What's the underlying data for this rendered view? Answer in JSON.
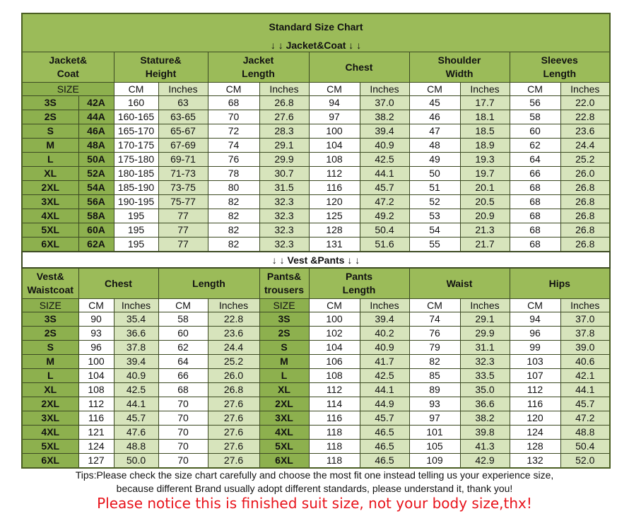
{
  "title": "Standard Size Chart",
  "jacket_heading": "↓ ↓  Jacket&Coat ↓ ↓",
  "jacket_table": {
    "headers": [
      "Jacket&\nCoat",
      "Stature&\nHeight",
      "Jacket\nLength",
      "Chest",
      "Shoulder\nWidth",
      "Sleeves\nLength"
    ],
    "subheaders": [
      "SIZE",
      "CM",
      "Inches",
      "CM",
      "Inches",
      "CM",
      "Inches",
      "CM",
      "Inches",
      "CM",
      "Inches"
    ],
    "rows": [
      [
        "3S",
        "42A",
        "160",
        "63",
        "68",
        "26.8",
        "94",
        "37.0",
        "45",
        "17.7",
        "56",
        "22.0"
      ],
      [
        "2S",
        "44A",
        "160-165",
        "63-65",
        "70",
        "27.6",
        "97",
        "38.2",
        "46",
        "18.1",
        "58",
        "22.8"
      ],
      [
        "S",
        "46A",
        "165-170",
        "65-67",
        "72",
        "28.3",
        "100",
        "39.4",
        "47",
        "18.5",
        "60",
        "23.6"
      ],
      [
        "M",
        "48A",
        "170-175",
        "67-69",
        "74",
        "29.1",
        "104",
        "40.9",
        "48",
        "18.9",
        "62",
        "24.4"
      ],
      [
        "L",
        "50A",
        "175-180",
        "69-71",
        "76",
        "29.9",
        "108",
        "42.5",
        "49",
        "19.3",
        "64",
        "25.2"
      ],
      [
        "XL",
        "52A",
        "180-185",
        "71-73",
        "78",
        "30.7",
        "112",
        "44.1",
        "50",
        "19.7",
        "66",
        "26.0"
      ],
      [
        "2XL",
        "54A",
        "185-190",
        "73-75",
        "80",
        "31.5",
        "116",
        "45.7",
        "51",
        "20.1",
        "68",
        "26.8"
      ],
      [
        "3XL",
        "56A",
        "190-195",
        "75-77",
        "82",
        "32.3",
        "120",
        "47.2",
        "52",
        "20.5",
        "68",
        "26.8"
      ],
      [
        "4XL",
        "58A",
        "195",
        "77",
        "82",
        "32.3",
        "125",
        "49.2",
        "53",
        "20.9",
        "68",
        "26.8"
      ],
      [
        "5XL",
        "60A",
        "195",
        "77",
        "82",
        "32.3",
        "128",
        "50.4",
        "54",
        "21.3",
        "68",
        "26.8"
      ],
      [
        "6XL",
        "62A",
        "195",
        "77",
        "82",
        "32.3",
        "131",
        "51.6",
        "55",
        "21.7",
        "68",
        "26.8"
      ]
    ]
  },
  "vest_heading": "↓ ↓  Vest &Pants ↓ ↓",
  "vest_table": {
    "headers": [
      "Vest&\nWaistcoat",
      "Chest",
      "Length",
      "Pants&\ntrousers",
      "Pants\nLength",
      "Waist",
      "Hips"
    ],
    "subheaders": [
      "SIZE",
      "CM",
      "Inches",
      "CM",
      "Inches",
      "SIZE",
      "CM",
      "Inches",
      "CM",
      "Inches",
      "CM",
      "Inches"
    ],
    "rows": [
      [
        "3S",
        "90",
        "35.4",
        "58",
        "22.8",
        "3S",
        "100",
        "39.4",
        "74",
        "29.1",
        "94",
        "37.0"
      ],
      [
        "2S",
        "93",
        "36.6",
        "60",
        "23.6",
        "2S",
        "102",
        "40.2",
        "76",
        "29.9",
        "96",
        "37.8"
      ],
      [
        "S",
        "96",
        "37.8",
        "62",
        "24.4",
        "S",
        "104",
        "40.9",
        "79",
        "31.1",
        "99",
        "39.0"
      ],
      [
        "M",
        "100",
        "39.4",
        "64",
        "25.2",
        "M",
        "106",
        "41.7",
        "82",
        "32.3",
        "103",
        "40.6"
      ],
      [
        "L",
        "104",
        "40.9",
        "66",
        "26.0",
        "L",
        "108",
        "42.5",
        "85",
        "33.5",
        "107",
        "42.1"
      ],
      [
        "XL",
        "108",
        "42.5",
        "68",
        "26.8",
        "XL",
        "112",
        "44.1",
        "89",
        "35.0",
        "112",
        "44.1"
      ],
      [
        "2XL",
        "112",
        "44.1",
        "70",
        "27.6",
        "2XL",
        "114",
        "44.9",
        "93",
        "36.6",
        "116",
        "45.7"
      ],
      [
        "3XL",
        "116",
        "45.7",
        "70",
        "27.6",
        "3XL",
        "116",
        "45.7",
        "97",
        "38.2",
        "120",
        "47.2"
      ],
      [
        "4XL",
        "121",
        "47.6",
        "70",
        "27.6",
        "4XL",
        "118",
        "46.5",
        "101",
        "39.8",
        "124",
        "48.8"
      ],
      [
        "5XL",
        "124",
        "48.8",
        "70",
        "27.6",
        "5XL",
        "118",
        "46.5",
        "105",
        "41.3",
        "128",
        "50.4"
      ],
      [
        "6XL",
        "127",
        "50.0",
        "70",
        "27.6",
        "6XL",
        "118",
        "46.5",
        "109",
        "42.9",
        "132",
        "52.0"
      ]
    ]
  },
  "tips": [
    "Tips:Please check the size chart carefully and choose the most fit one instead telling us your experience size,",
    "because different Brand usually adopt different standards, please understand it, thank you!"
  ],
  "notice": "Please notice this is finished suit size, not your body size,thx!"
}
